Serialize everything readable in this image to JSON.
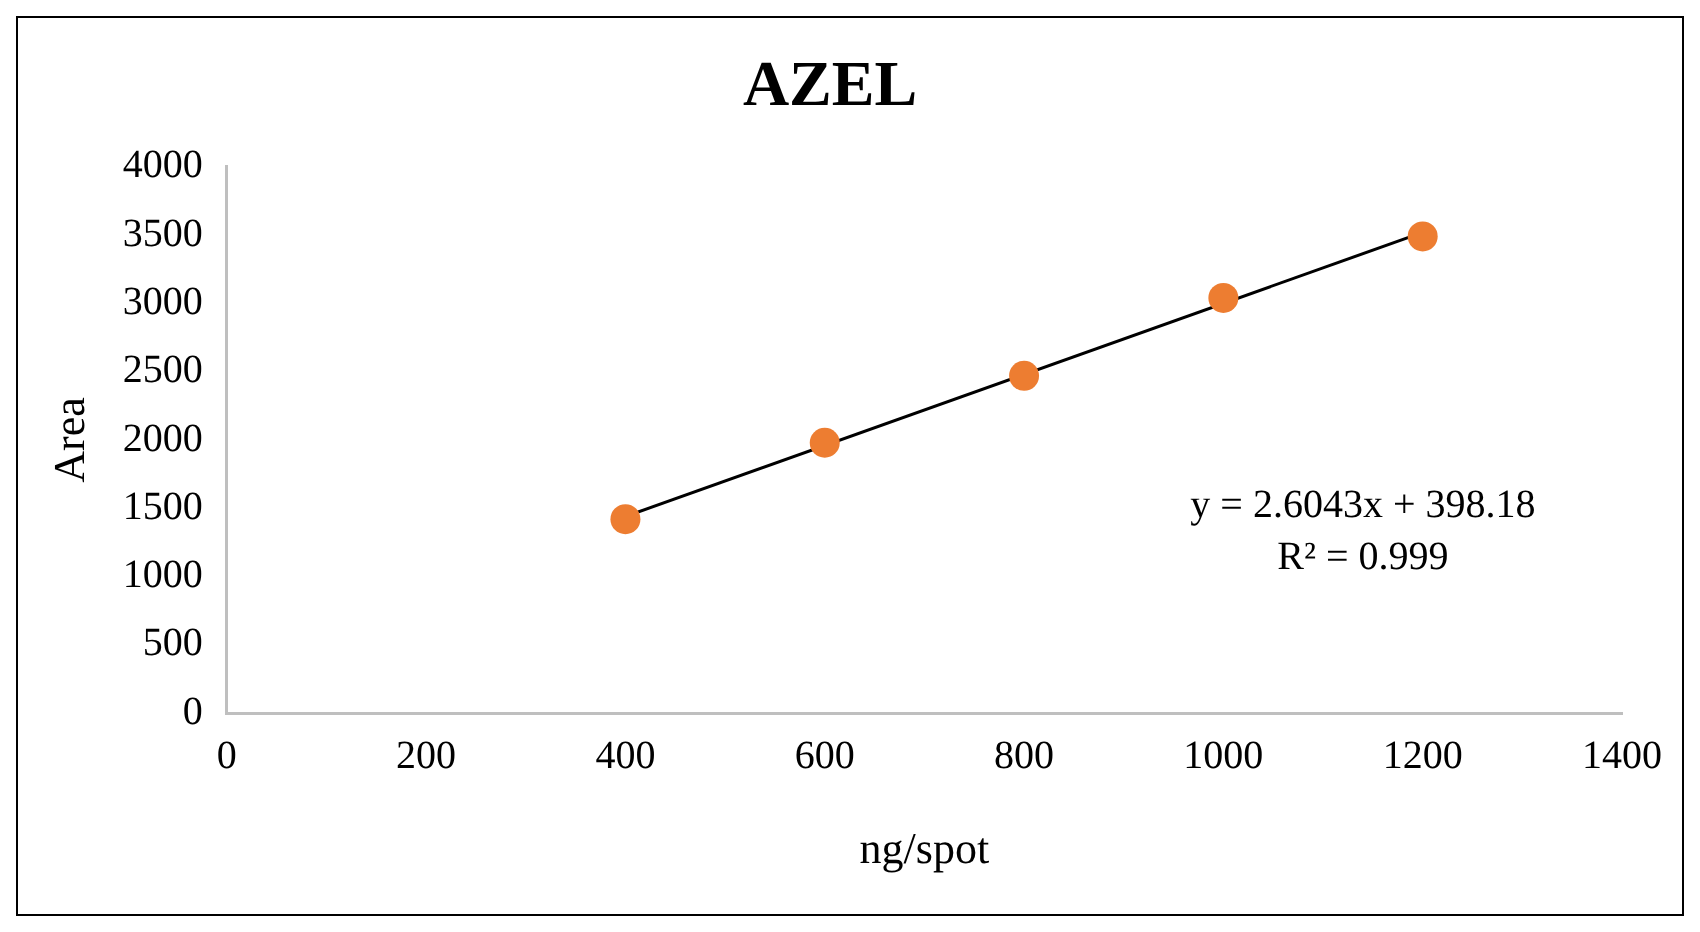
{
  "chart_data": {
    "type": "scatter",
    "title": "AZEL",
    "xlabel": "ng/spot",
    "ylabel": "Area",
    "xlim": [
      0,
      1400
    ],
    "xticks": [
      0,
      200,
      400,
      600,
      800,
      1000,
      1200,
      1400
    ],
    "ylim": [
      0,
      4000
    ],
    "yticks": [
      0,
      500,
      1000,
      1500,
      2000,
      2500,
      3000,
      3500,
      4000
    ],
    "grid": false,
    "legend": false,
    "marker": "circle",
    "series": [
      {
        "color": "#ed7d31",
        "x": [
          400,
          600,
          800,
          1000,
          1200
        ],
        "values": [
          1420,
          1980,
          2470,
          3040,
          3490
        ]
      },
      {
        "type": "line",
        "color": "#000000",
        "x": [
          400,
          1200
        ],
        "values": [
          1440,
          3520
        ],
        "marker": "none",
        "line_style": "solid"
      }
    ],
    "annotations": [
      "y = 2.6043x + 398.18",
      "R² = 0.999"
    ]
  }
}
